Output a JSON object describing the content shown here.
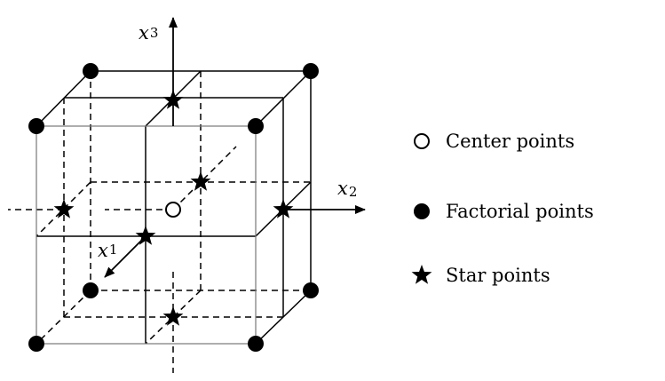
{
  "axes": {
    "x1": {
      "letter": "x",
      "sub": "1"
    },
    "x2": {
      "letter": "x",
      "sub": "2"
    },
    "x3": {
      "letter": "x",
      "sub": "3"
    }
  },
  "legend": {
    "items": [
      {
        "label": "Center points",
        "symbol": "open-circle-icon"
      },
      {
        "label": "Factorial points",
        "symbol": "filled-circle-icon"
      },
      {
        "label": "Star points",
        "symbol": "star-icon"
      }
    ]
  },
  "colors": {
    "ink": "#000000",
    "background": "#ffffff"
  }
}
